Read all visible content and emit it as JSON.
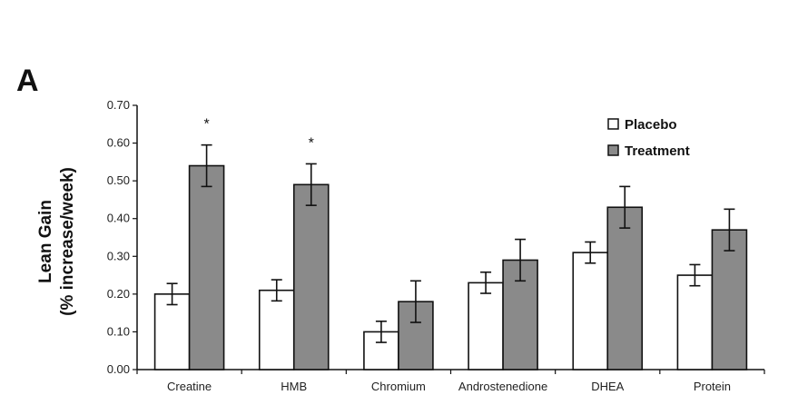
{
  "panel_label": "A",
  "chart_data": {
    "type": "bar",
    "categories": [
      "Creatine",
      "HMB",
      "Chromium",
      "Androstenedione",
      "DHEA",
      "Protein"
    ],
    "ylabel_line1": "Lean Gain",
    "ylabel_line2": "(% increase/week)",
    "ylim": [
      0,
      0.7
    ],
    "yticks": [
      "0.00",
      "0.10",
      "0.20",
      "0.30",
      "0.40",
      "0.50",
      "0.60",
      "0.70"
    ],
    "series": [
      {
        "name": "Placebo",
        "color": "#ffffff",
        "values": [
          0.2,
          0.21,
          0.1,
          0.23,
          0.31,
          0.25
        ],
        "errors": [
          0.028,
          0.028,
          0.028,
          0.028,
          0.028,
          0.028
        ]
      },
      {
        "name": "Treatment",
        "color": "#8a8a8a",
        "values": [
          0.54,
          0.49,
          0.18,
          0.29,
          0.43,
          0.37
        ],
        "errors": [
          0.055,
          0.055,
          0.055,
          0.055,
          0.055,
          0.055
        ]
      }
    ],
    "annotations": [
      {
        "category": "Creatine",
        "text": "*"
      },
      {
        "category": "HMB",
        "text": "*"
      }
    ],
    "legend_position": "top-right",
    "grid": false
  }
}
